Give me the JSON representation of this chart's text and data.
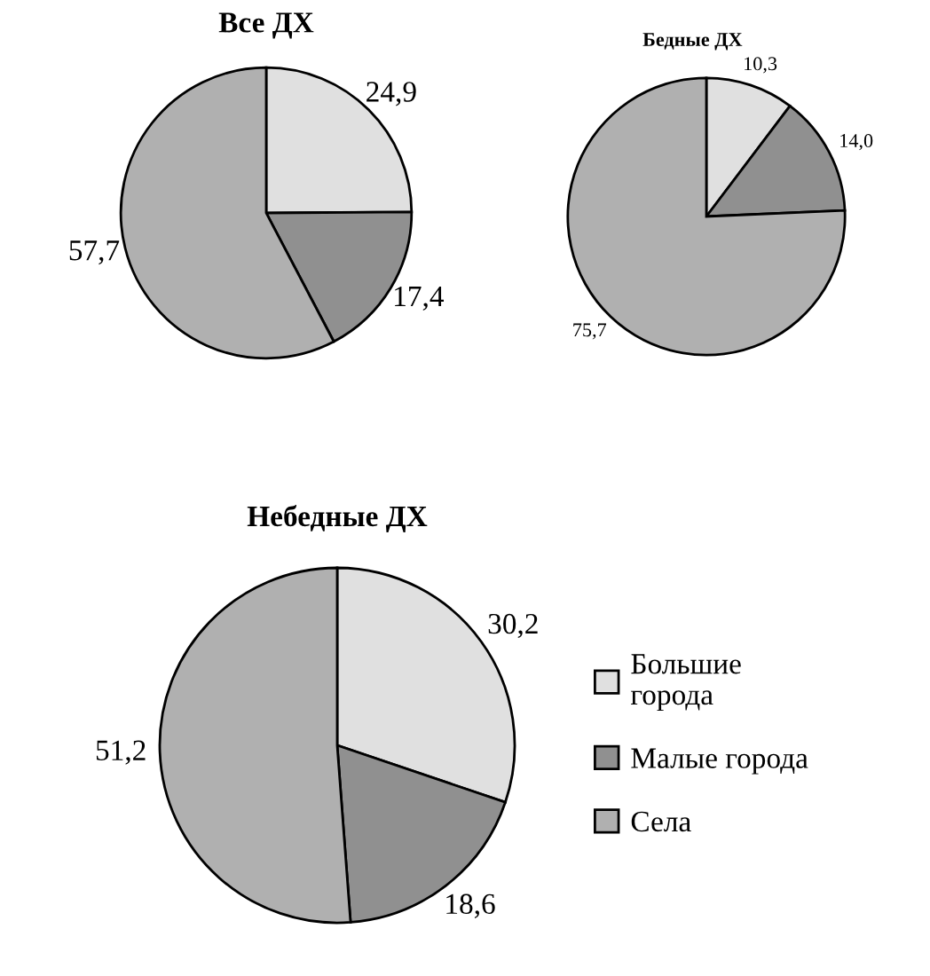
{
  "chart_data": [
    {
      "type": "pie",
      "title": "Все ДХ",
      "categories": [
        null,
        null,
        null
      ],
      "values": [
        24.9,
        17.4,
        57.7
      ],
      "value_labels": [
        "24,9",
        "17,4",
        "57,7"
      ],
      "colors": [
        "#e0e0e0",
        "#909090",
        "#b0b0b0"
      ],
      "legend": false
    },
    {
      "type": "pie",
      "title": "Бедные ДХ",
      "categories": [
        null,
        null,
        null
      ],
      "values": [
        10.3,
        14.0,
        75.7
      ],
      "value_labels": [
        "10,3",
        "14,0",
        "75,7"
      ],
      "colors": [
        "#e0e0e0",
        "#909090",
        "#b0b0b0"
      ],
      "legend": false
    },
    {
      "type": "pie",
      "title": "Небедные ДХ",
      "categories": [
        "Большие города",
        "Малые города",
        "Села"
      ],
      "values": [
        30.2,
        18.6,
        51.2
      ],
      "value_labels": [
        "30,2",
        "18,6",
        "51,2"
      ],
      "colors": [
        "#e0e0e0",
        "#909090",
        "#b0b0b0"
      ],
      "legend": "right"
    }
  ]
}
